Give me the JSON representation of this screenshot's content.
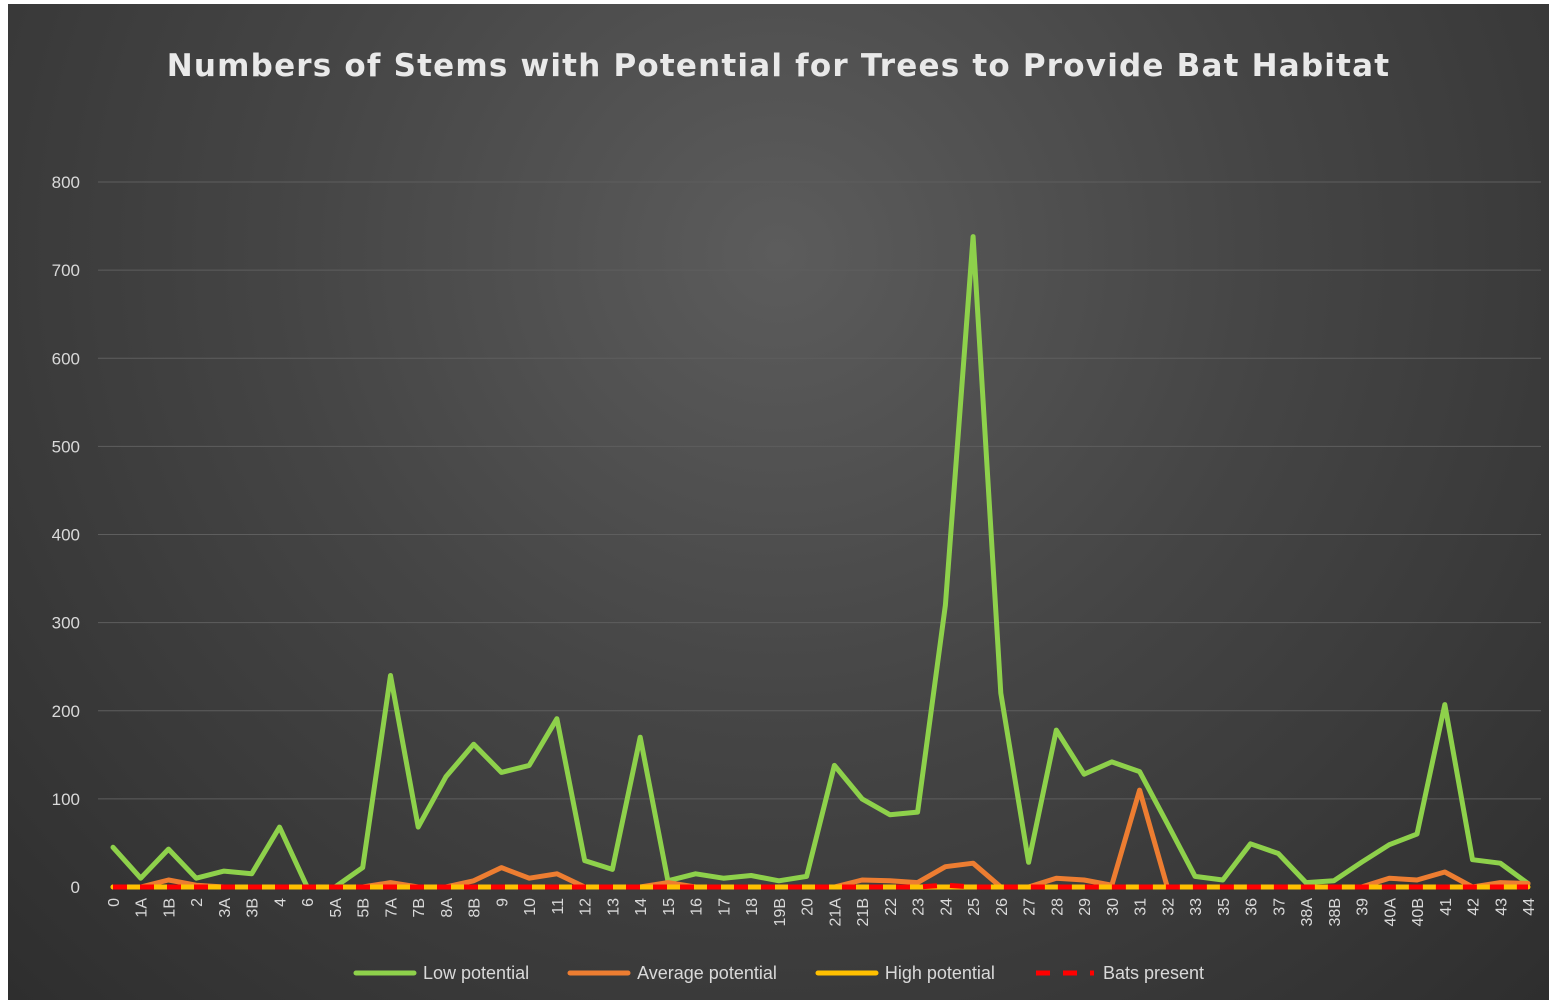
{
  "chart_data": {
    "type": "line",
    "title": "Numbers of Stems with Potential for Trees to Provide Bat Habitat",
    "xlabel": "",
    "ylabel": "",
    "ylim": [
      0,
      800
    ],
    "yticks": [
      0,
      100,
      200,
      300,
      400,
      500,
      600,
      700,
      800
    ],
    "grid": true,
    "legend_position": "bottom",
    "categories": [
      "0",
      "1A",
      "1B",
      "2",
      "3A",
      "3B",
      "4",
      "6",
      "5A",
      "5B",
      "7A",
      "7B",
      "8A",
      "8B",
      "9",
      "10",
      "11",
      "12",
      "13",
      "14",
      "15",
      "16",
      "17",
      "18",
      "19B",
      "20",
      "21A",
      "21B",
      "22",
      "23",
      "24",
      "25",
      "26",
      "27",
      "28",
      "29",
      "30",
      "31",
      "32",
      "33",
      "35",
      "36",
      "37",
      "38A",
      "38B",
      "39",
      "40A",
      "40B",
      "41",
      "42",
      "43",
      "44"
    ],
    "series": [
      {
        "name": "Low potential",
        "color": "#8ed14b",
        "style": "solid",
        "values": [
          45,
          10,
          43,
          10,
          18,
          15,
          68,
          0,
          0,
          22,
          240,
          68,
          125,
          162,
          130,
          138,
          191,
          30,
          20,
          170,
          7,
          15,
          10,
          13,
          7,
          12,
          138,
          100,
          82,
          85,
          320,
          738,
          220,
          28,
          178,
          128,
          142,
          131,
          72,
          12,
          8,
          49,
          38,
          5,
          7,
          28,
          48,
          60,
          207,
          31,
          27,
          4
        ]
      },
      {
        "name": "Average potential",
        "color": "#ed7d31",
        "style": "solid",
        "values": [
          0,
          0,
          8,
          2,
          0,
          0,
          0,
          0,
          0,
          0,
          5,
          0,
          0,
          7,
          22,
          10,
          15,
          0,
          0,
          0,
          5,
          0,
          0,
          0,
          0,
          0,
          0,
          8,
          7,
          5,
          23,
          27,
          0,
          0,
          10,
          8,
          2,
          110,
          0,
          0,
          0,
          0,
          0,
          0,
          0,
          0,
          10,
          8,
          17,
          0,
          5,
          4
        ]
      },
      {
        "name": "High potential",
        "color": "#ffc000",
        "style": "solid",
        "values": [
          0,
          0,
          0,
          0,
          0,
          0,
          0,
          0,
          0,
          0,
          0,
          0,
          0,
          0,
          0,
          0,
          0,
          0,
          0,
          0,
          0,
          0,
          0,
          0,
          0,
          0,
          0,
          0,
          0,
          0,
          0,
          0,
          0,
          0,
          0,
          0,
          0,
          0,
          0,
          0,
          0,
          0,
          0,
          0,
          0,
          0,
          0,
          0,
          0,
          0,
          0,
          0
        ]
      },
      {
        "name": "Bats present",
        "color": "#ff0000",
        "style": "dashed",
        "values": [
          0,
          0,
          0,
          0,
          0,
          0,
          0,
          0,
          0,
          0,
          0,
          0,
          0,
          0,
          0,
          0,
          0,
          0,
          0,
          0,
          0,
          0,
          0,
          0,
          0,
          0,
          0,
          0,
          0,
          0,
          2,
          0,
          0,
          0,
          0,
          0,
          0,
          0,
          0,
          0,
          0,
          0,
          0,
          0,
          0,
          0,
          0,
          0,
          0,
          0,
          0,
          0
        ]
      }
    ]
  }
}
